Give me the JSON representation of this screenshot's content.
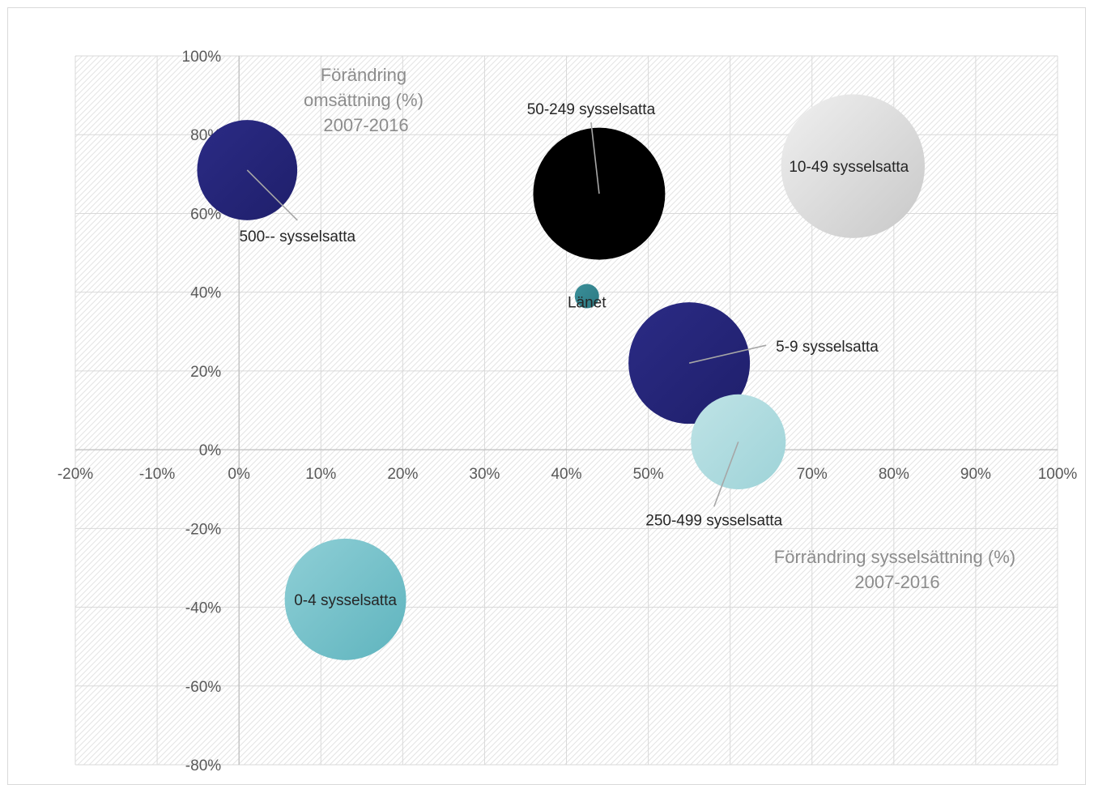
{
  "chart_data": {
    "type": "scatter",
    "subtype": "bubble",
    "x_axis": {
      "title_lines": [
        "Förrändring sysselsättning (%)",
        "2007-2016"
      ],
      "min": -20,
      "max": 100,
      "step": 10,
      "tick_labels": [
        "-20%",
        "-10%",
        "0%",
        "10%",
        "20%",
        "30%",
        "40%",
        "50%",
        "60%",
        "70%",
        "80%",
        "90%",
        "100%"
      ]
    },
    "y_axis": {
      "title_lines": [
        "Förändring",
        "omsättning (%)",
        "2007-2016"
      ],
      "min": -80,
      "max": 100,
      "step": 20,
      "tick_labels": [
        "-80%",
        "-60%",
        "-40%",
        "-20%",
        "0%",
        "20%",
        "40%",
        "60%",
        "80%",
        "100%"
      ]
    },
    "grid": true,
    "plot_background": "hatched",
    "points": [
      {
        "name": "0-4 sysselsatta",
        "x": 13,
        "y": -38,
        "size": 1,
        "color": "#8fcfd6",
        "color2": "#5fb4be"
      },
      {
        "name": "5-9 sysselsatta",
        "x": 55,
        "y": 22,
        "size": 1,
        "color": "#2b2b85",
        "color2": "#1f1f6b"
      },
      {
        "name": "10-49 sysselsatta",
        "x": 75,
        "y": 72,
        "size": 1.4,
        "color": "#f0f0f0",
        "color2": "#c8c8c8"
      },
      {
        "name": "50-249 sysselsatta",
        "x": 44,
        "y": 65,
        "size": 1.18,
        "color": "#000000",
        "color2": "#000000"
      },
      {
        "name": "250-499 sysselsatta",
        "x": 61,
        "y": 2,
        "size": 0.61,
        "color": "#bfe3e6",
        "color2": "#9ed3d8"
      },
      {
        "name": "500-- sysselsatta",
        "x": 1,
        "y": 71,
        "size": 0.68,
        "color": "#2b2b85",
        "color2": "#1f1f6b"
      },
      {
        "name": "Länet",
        "x": 42.5,
        "y": 39,
        "size": 0.015,
        "color": "#3a8f99",
        "color2": "#2d7a83"
      }
    ]
  },
  "colors": {
    "grid": "#d9d9d9",
    "axis": "#bfbfbf",
    "hatch": "#e3e3e3",
    "leader": "#a6a6a6"
  }
}
